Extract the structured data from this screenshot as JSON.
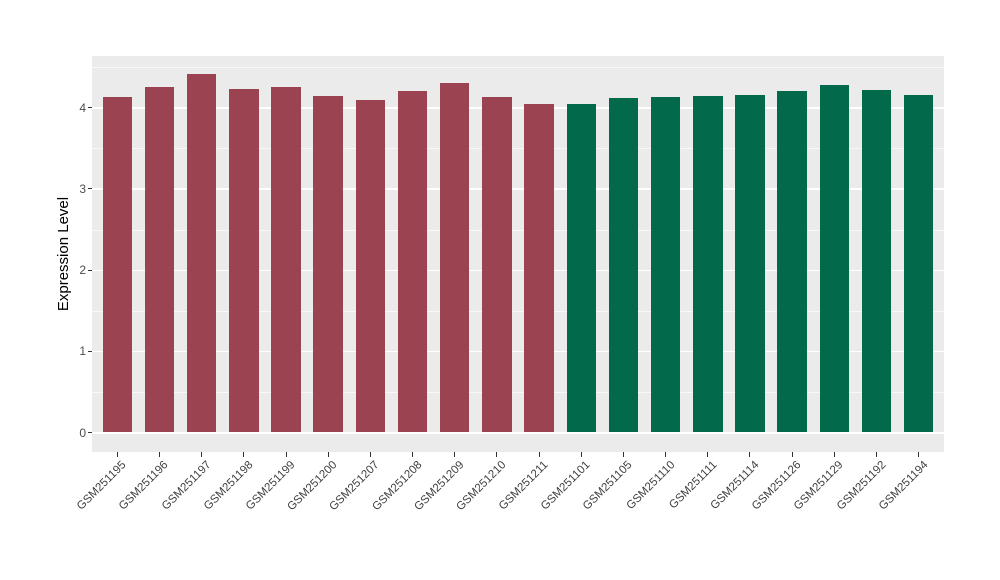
{
  "figure": {
    "background_color": "#FFFFFF",
    "panel_background_color": "#EBEBEB",
    "grid_color": "#FFFFFF",
    "axis_text_color": "#4D4D4D",
    "axis_title_color": "#000000",
    "tick_mark_color": "#333333"
  },
  "chart_data": {
    "type": "bar",
    "title": "",
    "xlabel": "",
    "ylabel": "Expression Level",
    "ylim": [
      -0.24,
      4.64
    ],
    "yticks": [
      0,
      1,
      2,
      3,
      4
    ],
    "grid": {
      "major": [
        0,
        1,
        2,
        3,
        4
      ],
      "minor": [
        0.5,
        1.5,
        2.5,
        3.5,
        4.5
      ]
    },
    "legend": "none",
    "categories": [
      "GSM251195",
      "GSM251196",
      "GSM251197",
      "GSM251198",
      "GSM251199",
      "GSM251200",
      "GSM251207",
      "GSM251208",
      "GSM251209",
      "GSM251210",
      "GSM251211",
      "GSM251101",
      "GSM251105",
      "GSM251110",
      "GSM251111",
      "GSM251114",
      "GSM251126",
      "GSM251129",
      "GSM251192",
      "GSM251194"
    ],
    "values": [
      4.13,
      4.26,
      4.41,
      4.23,
      4.25,
      4.14,
      4.09,
      4.2,
      4.3,
      4.13,
      4.05,
      4.05,
      4.12,
      4.13,
      4.14,
      4.16,
      4.2,
      4.28,
      4.22,
      4.16
    ],
    "bar_groups": [
      "red",
      "red",
      "red",
      "red",
      "red",
      "red",
      "red",
      "red",
      "red",
      "red",
      "red",
      "green",
      "green",
      "green",
      "green",
      "green",
      "green",
      "green",
      "green",
      "green"
    ],
    "group_colors": {
      "red": "#9B4350",
      "green": "#02694A"
    }
  }
}
